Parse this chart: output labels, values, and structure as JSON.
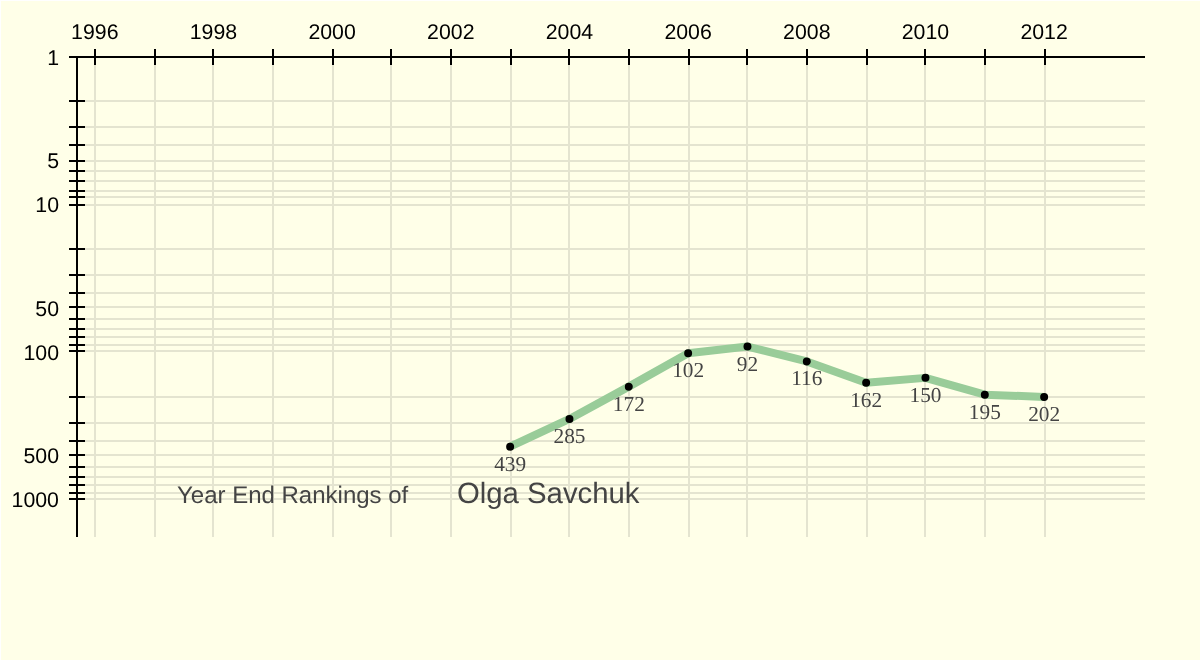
{
  "chart_data": {
    "type": "line",
    "title": "Year End Rankings of",
    "subtitle": "Olga Savchuk",
    "x": [
      2003,
      2004,
      2005,
      2006,
      2007,
      2008,
      2009,
      2010,
      2011,
      2012
    ],
    "series": [
      {
        "color": "#99cc99",
        "values": [
          439,
          285,
          172,
          102,
          92,
          116,
          162,
          150,
          195,
          202
        ]
      }
    ],
    "data_labels": true,
    "marker": "circle",
    "log": "y",
    "grid": true,
    "xlim": [
      1995.7,
      2013.7
    ],
    "ylim": [
      1800,
      1
    ],
    "xticks": [
      1996,
      {
        "value": 1997,
        "label": null
      },
      1998,
      {
        "value": 1999,
        "label": null
      },
      2000,
      {
        "value": 2001,
        "label": null
      },
      2002,
      {
        "value": 2003,
        "label": null
      },
      2004,
      {
        "value": 2005,
        "label": null
      },
      2006,
      {
        "value": 2007,
        "label": null
      },
      2008,
      {
        "value": 2009,
        "label": null
      },
      2010,
      {
        "value": 2011,
        "label": null
      },
      2012
    ],
    "yticks": [
      1,
      {
        "value": 2,
        "label": null
      },
      {
        "value": 3,
        "label": null
      },
      {
        "value": 4,
        "label": null
      },
      5,
      {
        "value": 6,
        "label": null
      },
      {
        "value": 7,
        "label": null
      },
      {
        "value": 8,
        "label": null
      },
      {
        "value": 9,
        "label": null
      },
      10,
      {
        "value": 20,
        "label": null
      },
      {
        "value": 30,
        "label": null
      },
      {
        "value": 40,
        "label": null
      },
      50,
      {
        "value": 60,
        "label": null
      },
      {
        "value": 70,
        "label": null
      },
      {
        "value": 80,
        "label": null
      },
      {
        "value": 90,
        "label": null
      },
      100,
      {
        "value": 200,
        "label": null
      },
      {
        "value": 300,
        "label": null
      },
      {
        "value": 400,
        "label": null
      },
      500,
      {
        "value": 600,
        "label": null
      },
      {
        "value": 700,
        "label": null
      },
      {
        "value": 800,
        "label": null
      },
      {
        "value": 900,
        "label": null
      },
      1000
    ]
  }
}
